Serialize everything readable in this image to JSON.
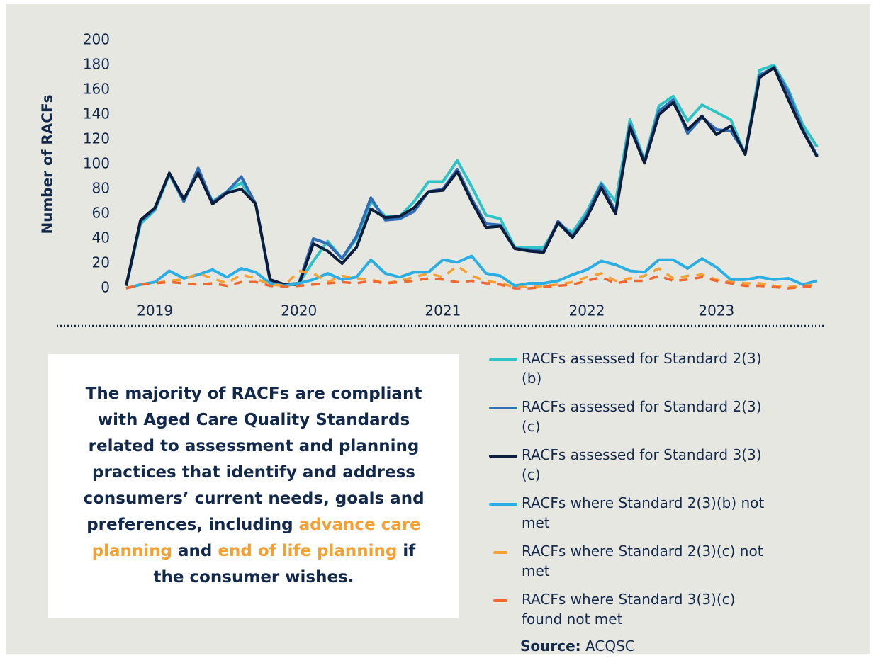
{
  "chart_data": {
    "type": "line",
    "y_axis_label": "Number of RACFs",
    "categories": [
      null,
      null,
      "2019",
      null,
      null,
      null,
      null,
      null,
      null,
      null,
      null,
      null,
      "2020",
      null,
      null,
      null,
      null,
      null,
      null,
      null,
      null,
      null,
      "2021",
      null,
      null,
      null,
      null,
      null,
      null,
      null,
      null,
      null,
      "2022",
      null,
      null,
      null,
      null,
      null,
      null,
      null,
      null,
      "2023",
      null,
      null,
      null,
      null,
      null,
      null,
      null
    ],
    "ylim": [
      0,
      200
    ],
    "yticks": [
      0,
      20,
      40,
      60,
      80,
      100,
      120,
      140,
      160,
      180,
      200
    ],
    "series": [
      {
        "name": "RACFs assessed for Standard 2(3)(b)",
        "color": "#2ec4c6",
        "dashed": false,
        "values": [
          2,
          52,
          63,
          92,
          70,
          95,
          70,
          78,
          85,
          68,
          6,
          3,
          4,
          22,
          38,
          24,
          40,
          70,
          58,
          58,
          70,
          86,
          86,
          103,
          82,
          59,
          56,
          33,
          33,
          33,
          52,
          45,
          62,
          85,
          70,
          136,
          103,
          147,
          155,
          135,
          148,
          142,
          136,
          108,
          176,
          180,
          160,
          132,
          114
        ]
      },
      {
        "name": "RACFs assessed for Standard 2(3)(c)",
        "color": "#2f6db5",
        "dashed": false,
        "values": [
          2,
          54,
          64,
          93,
          70,
          97,
          69,
          78,
          90,
          68,
          6,
          3,
          4,
          40,
          36,
          24,
          42,
          73,
          55,
          56,
          62,
          78,
          80,
          96,
          72,
          52,
          51,
          32,
          31,
          30,
          54,
          42,
          59,
          84,
          62,
          132,
          102,
          143,
          152,
          125,
          138,
          128,
          127,
          109,
          172,
          178,
          158,
          128,
          107
        ]
      },
      {
        "name": "RACFs assessed for Standard 3(3)(c)",
        "color": "#0b1d3c",
        "dashed": false,
        "values": [
          2,
          55,
          65,
          93,
          72,
          93,
          68,
          77,
          80,
          68,
          7,
          3,
          3,
          36,
          30,
          20,
          33,
          64,
          57,
          58,
          65,
          78,
          79,
          94,
          70,
          49,
          50,
          32,
          30,
          29,
          53,
          41,
          57,
          81,
          60,
          130,
          101,
          140,
          150,
          128,
          139,
          124,
          131,
          108,
          170,
          178,
          152,
          127,
          106
        ]
      },
      {
        "name": "RACFs where Standard 2(3)(b) not met",
        "color": "#2aaee4",
        "dashed": false,
        "values": [
          0,
          3,
          5,
          14,
          8,
          11,
          15,
          9,
          16,
          13,
          4,
          2,
          4,
          7,
          12,
          7,
          9,
          23,
          12,
          9,
          13,
          13,
          23,
          21,
          26,
          12,
          10,
          2,
          4,
          4,
          6,
          11,
          15,
          22,
          19,
          14,
          13,
          23,
          23,
          16,
          24,
          17,
          7,
          7,
          9,
          7,
          8,
          3,
          6
        ]
      },
      {
        "name": "RACFs where Standard 2(3)(c) not met",
        "color": "#f5a032",
        "dashed": true,
        "values": [
          0,
          3,
          4,
          6,
          7,
          12,
          8,
          4,
          11,
          8,
          3,
          2,
          14,
          12,
          5,
          10,
          8,
          7,
          4,
          6,
          9,
          12,
          9,
          18,
          10,
          6,
          4,
          1,
          1,
          2,
          3,
          5,
          9,
          12,
          6,
          8,
          10,
          16,
          8,
          10,
          11,
          7,
          5,
          4,
          4,
          2,
          1,
          2,
          3
        ]
      },
      {
        "name": "RACFs where Standard 3(3)(c) found not met",
        "color": "#f0682e",
        "dashed": true,
        "values": [
          0,
          3,
          4,
          5,
          4,
          3,
          4,
          2,
          5,
          5,
          2,
          1,
          2,
          3,
          4,
          5,
          4,
          6,
          4,
          5,
          6,
          8,
          7,
          5,
          6,
          4,
          3,
          0,
          0,
          1,
          2,
          3,
          6,
          9,
          4,
          6,
          6,
          10,
          6,
          7,
          9,
          6,
          4,
          2,
          2,
          1,
          0,
          1,
          2
        ]
      }
    ]
  },
  "callout": {
    "parts": [
      {
        "text": "The majority of RACFs are compliant with Aged Care Quality Standards related to assessment and planning practices that identify and address consumers’ current needs, goals and preferences, including ",
        "highlight": false
      },
      {
        "text": "advance care planning",
        "highlight": true
      },
      {
        "text": " and ",
        "highlight": false
      },
      {
        "text": "end of life planning",
        "highlight": true
      },
      {
        "text": " if the consumer wishes.",
        "highlight": false
      }
    ]
  },
  "source": {
    "label": "Source:",
    "text": "ACQSC"
  }
}
